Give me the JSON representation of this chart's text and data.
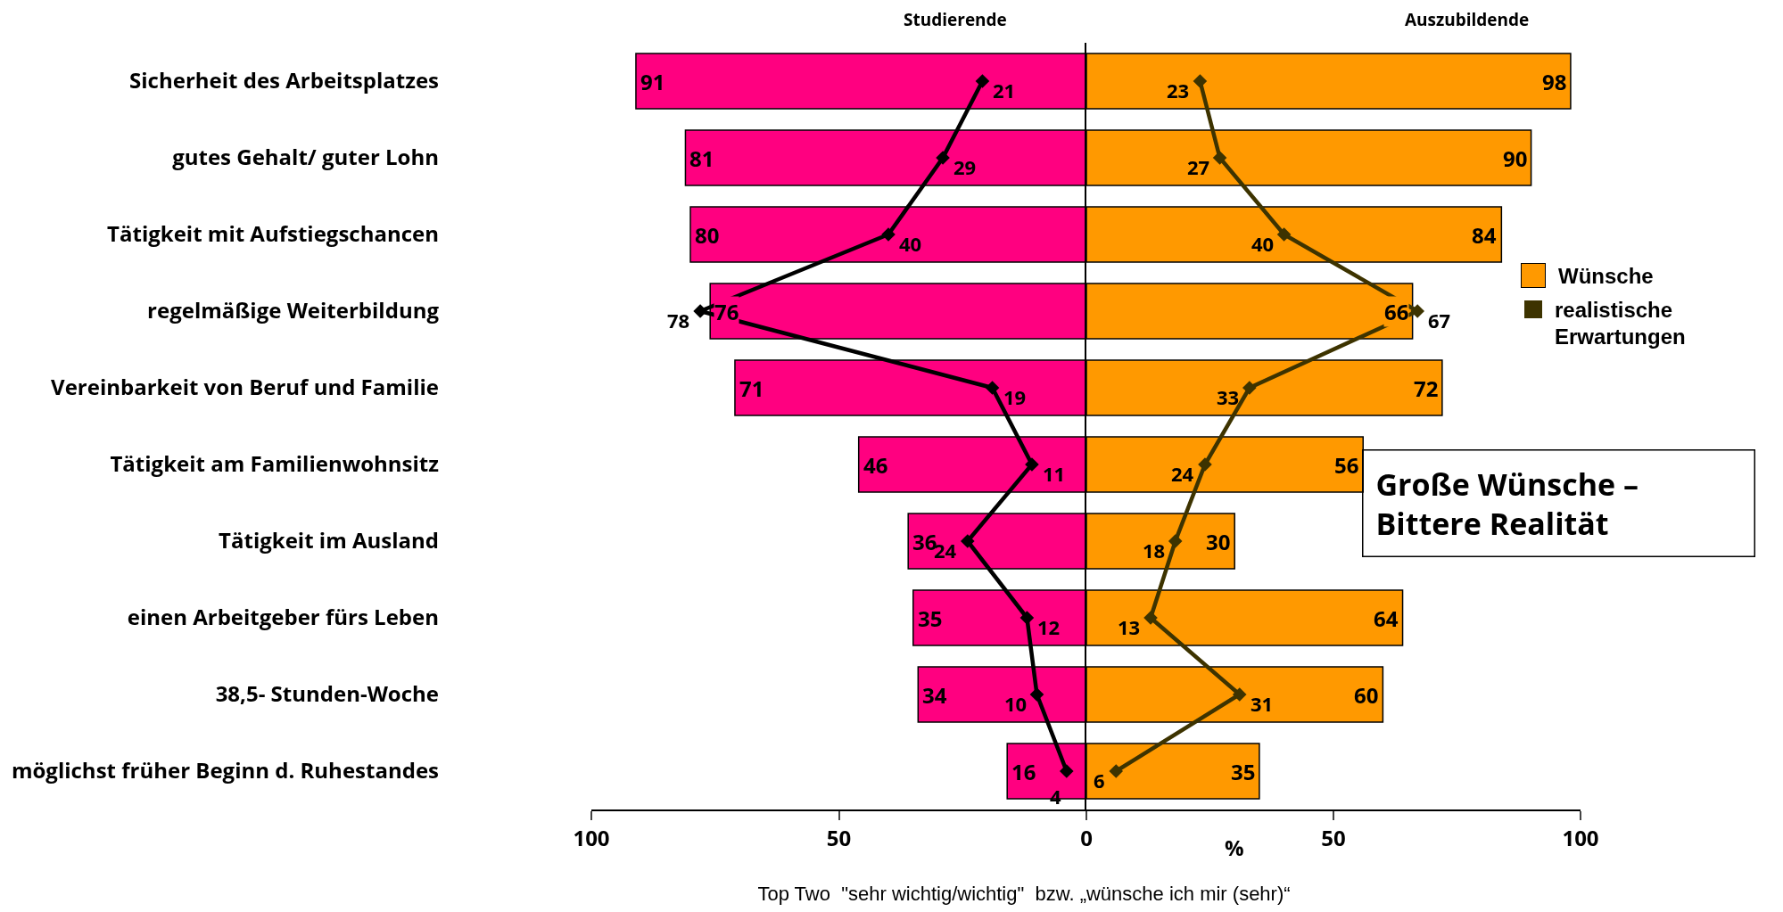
{
  "chart_data": [
    {
      "type": "bar",
      "orientation": "horizontal",
      "title": "Studierende",
      "xlabel": "Top Two  \"sehr wichtig/wichtig\"  bzw. „wünsche ich mir (sehr)“",
      "categories": [
        "Sicherheit des Arbeitsplatzes",
        "gutes Gehalt/ guter Lohn",
        "Tätigkeit mit Aufstiegschancen",
        "regelmäßige Weiterbildung",
        "Vereinbarkeit von Beruf und Familie",
        "Tätigkeit am Familienwohnsitz",
        "Tätigkeit im Ausland",
        "einen Arbeitgeber fürs Leben",
        "38,5- Stunden-Woche",
        "möglichst früher Beginn d. Ruhestandes"
      ],
      "series": [
        {
          "color": "#ff0080",
          "values": [
            91,
            81,
            80,
            76,
            71,
            46,
            36,
            35,
            34,
            16
          ]
        },
        {
          "type": "line",
          "color": "#000000",
          "values": [
            21,
            29,
            40,
            78,
            19,
            11,
            24,
            12,
            10,
            4
          ]
        }
      ],
      "data_labels": true,
      "xlim": [
        100,
        0
      ],
      "xticks": [
        100,
        50,
        {
          "value": 0,
          "label": null
        }
      ],
      "marker": "diamond",
      "line_style": "solid"
    },
    {
      "type": "bar",
      "orientation": "horizontal",
      "title": "Auszubildende",
      "categories": [
        null,
        null,
        null,
        null,
        null,
        null,
        null,
        null,
        null,
        null
      ],
      "series": [
        {
          "name": "Wünsche",
          "color": "#ff9900",
          "values": [
            98,
            90,
            84,
            66,
            72,
            56,
            30,
            64,
            60,
            35
          ]
        },
        {
          "name": "realistische Erwartungen",
          "type": "line",
          "color": "#3d3300",
          "values": [
            23,
            27,
            40,
            67,
            33,
            24,
            18,
            13,
            31,
            6
          ]
        }
      ],
      "data_labels": true,
      "xlim": [
        0,
        100
      ],
      "xticks": [
        0,
        50,
        100
      ],
      "tick_labels": "x",
      "annotations": [
        "%",
        "Große Wünsche –\nBittere Realität"
      ],
      "legend": "right",
      "marker": "diamond",
      "line_style": "solid"
    }
  ]
}
